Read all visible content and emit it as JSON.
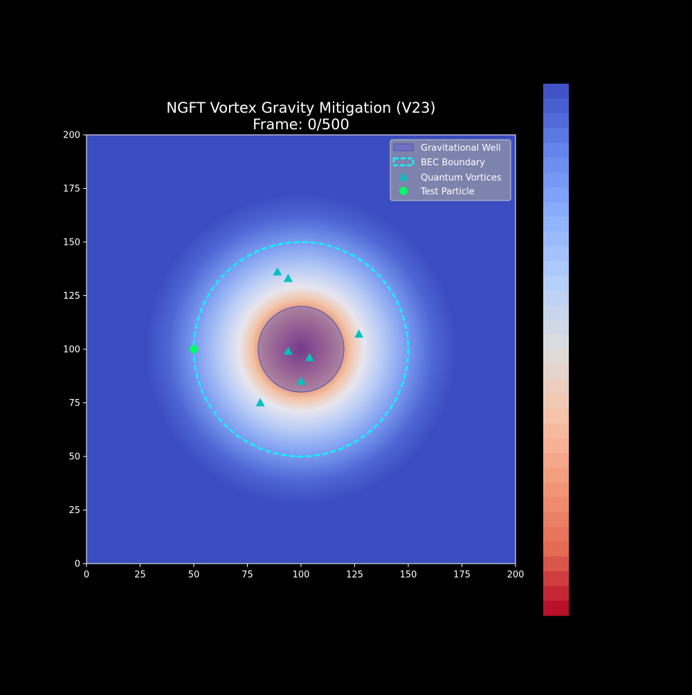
{
  "chart_data": {
    "type": "heatmap",
    "title": "NGFT Vortex Gravity Mitigation (V23)",
    "subtitle": "Frame: 0/500",
    "xlim": [
      0,
      200
    ],
    "ylim": [
      0,
      200
    ],
    "x_ticks": [
      0,
      25,
      50,
      75,
      100,
      125,
      150,
      175,
      200
    ],
    "y_ticks": [
      0,
      25,
      50,
      75,
      100,
      125,
      150,
      175,
      200
    ],
    "field": {
      "center": [
        100,
        100
      ],
      "description_colormap": "coolwarm_r"
    },
    "gravitational_well": {
      "label": "Gravitational Well",
      "center": [
        100,
        100
      ],
      "radius": 20,
      "color": "#6a6acb"
    },
    "bec_boundary": {
      "label": "BEC Boundary",
      "center": [
        100,
        100
      ],
      "radius": 50,
      "color": "#00ffff"
    },
    "vortices": {
      "label": "Quantum Vortices",
      "color": "#00c0c0",
      "points": [
        [
          89,
          136
        ],
        [
          94,
          133
        ],
        [
          127,
          107
        ],
        [
          94,
          99
        ],
        [
          104,
          96
        ],
        [
          100,
          85
        ],
        [
          81,
          75
        ]
      ]
    },
    "test_particle": {
      "label": "Test Particle",
      "color": "#00ff66",
      "point": [
        50,
        100
      ]
    },
    "grid": false,
    "legend_position": "top-right",
    "colorbar": {
      "position": "right",
      "colormap": "coolwarm_r"
    }
  }
}
